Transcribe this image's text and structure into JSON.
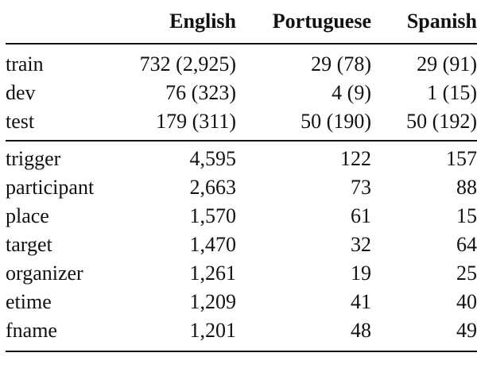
{
  "table": {
    "headers": [
      "",
      "English",
      "Portuguese",
      "Spanish"
    ],
    "splits": [
      {
        "label": "train",
        "english": "732 (2,925)",
        "portuguese": "29 (78)",
        "spanish": "29 (91)"
      },
      {
        "label": "dev",
        "english": "76 (323)",
        "portuguese": "4 (9)",
        "spanish": "1 (15)"
      },
      {
        "label": "test",
        "english": "179 (311)",
        "portuguese": "50 (190)",
        "spanish": "50 (192)"
      }
    ],
    "roles": [
      {
        "label": "trigger",
        "english": "4,595",
        "portuguese": "122",
        "spanish": "157"
      },
      {
        "label": "participant",
        "english": "2,663",
        "portuguese": "73",
        "spanish": "88"
      },
      {
        "label": "place",
        "english": "1,570",
        "portuguese": "61",
        "spanish": "15"
      },
      {
        "label": "target",
        "english": "1,470",
        "portuguese": "32",
        "spanish": "64"
      },
      {
        "label": "organizer",
        "english": "1,261",
        "portuguese": "19",
        "spanish": "25"
      },
      {
        "label": "etime",
        "english": "1,209",
        "portuguese": "41",
        "spanish": "40"
      },
      {
        "label": "fname",
        "english": "1,201",
        "portuguese": "48",
        "spanish": "49"
      }
    ]
  }
}
